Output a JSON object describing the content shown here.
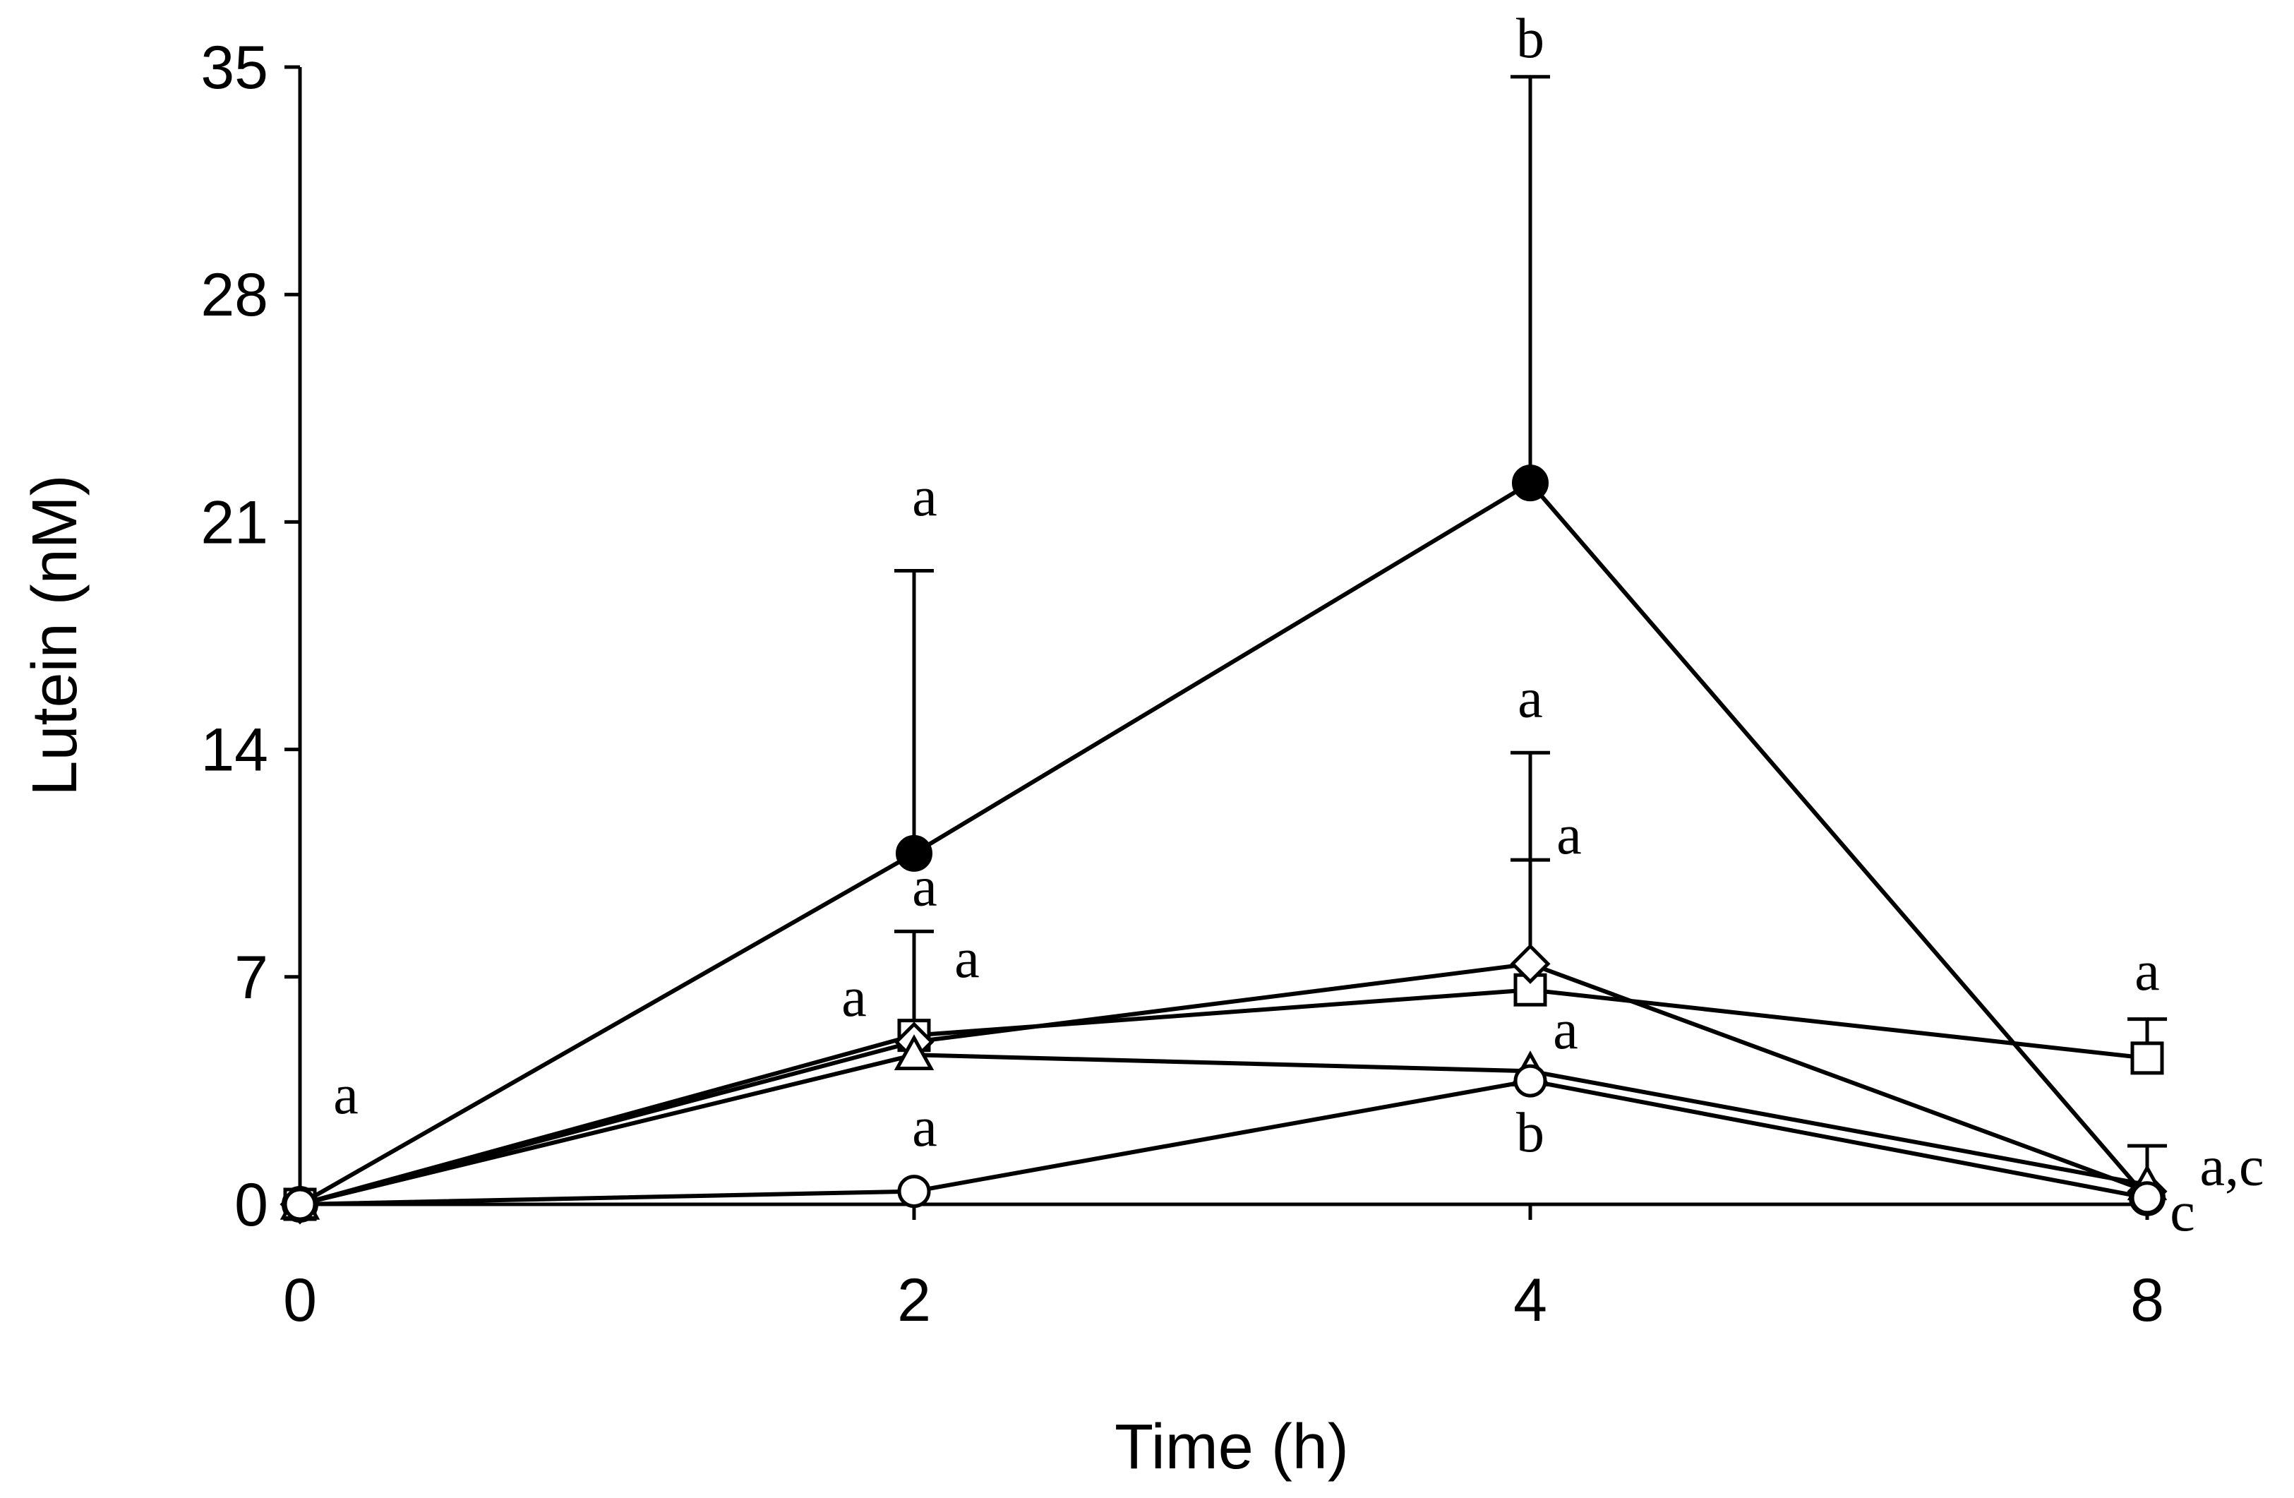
{
  "chart_data": {
    "type": "line",
    "xlabel": "Time (h)",
    "ylabel": "Lutein (nM)",
    "categories": [
      "0",
      "2",
      "4",
      "8"
    ],
    "ylim": [
      0,
      35
    ],
    "yticks": [
      "0",
      "7",
      "14",
      "21",
      "28",
      "35"
    ],
    "grid": false,
    "series": [
      {
        "marker": "filled-circle",
        "values": [
          0,
          10.8,
          22.2,
          0.2
        ],
        "err": [
          0,
          8.7,
          12.5,
          0
        ]
      },
      {
        "marker": "open-square",
        "values": [
          0,
          5.2,
          6.6,
          4.5
        ],
        "err": [
          0,
          3.2,
          4.0,
          1.2
        ]
      },
      {
        "marker": "open-diamond",
        "values": [
          0,
          5.0,
          7.4,
          0.4
        ],
        "err": [
          0,
          0,
          6.5,
          0
        ]
      },
      {
        "marker": "open-triangle",
        "values": [
          0,
          4.6,
          4.1,
          0.6
        ],
        "err": [
          0,
          0,
          0,
          1.2
        ]
      },
      {
        "marker": "open-circle",
        "values": [
          0,
          0.4,
          3.8,
          0.2
        ],
        "err": [
          0,
          0,
          0,
          0
        ]
      }
    ],
    "annotations": [
      {
        "text": "a",
        "x": "0",
        "y": 2.8
      },
      {
        "text": "a",
        "x": "2",
        "y": 21.2
      },
      {
        "text": "a",
        "x": "2",
        "y": 9.2
      },
      {
        "text": "a",
        "x": "2",
        "y": 7.0
      },
      {
        "text": "a",
        "x": "2",
        "y": 5.8
      },
      {
        "text": "a",
        "x": "2",
        "y": 1.8
      },
      {
        "text": "b",
        "x": "4",
        "y": 35.3
      },
      {
        "text": "a",
        "x": "4",
        "y": 15.0
      },
      {
        "text": "a",
        "x": "4",
        "y": 10.8
      },
      {
        "text": "a",
        "x": "4",
        "y": 4.8
      },
      {
        "text": "b",
        "x": "4",
        "y": 2.5
      },
      {
        "text": "a",
        "x": "8",
        "y": 6.6
      },
      {
        "text": "a,c",
        "x": "8",
        "y": 0.6
      },
      {
        "text": "c",
        "x": "8",
        "y": -0.8
      }
    ]
  }
}
